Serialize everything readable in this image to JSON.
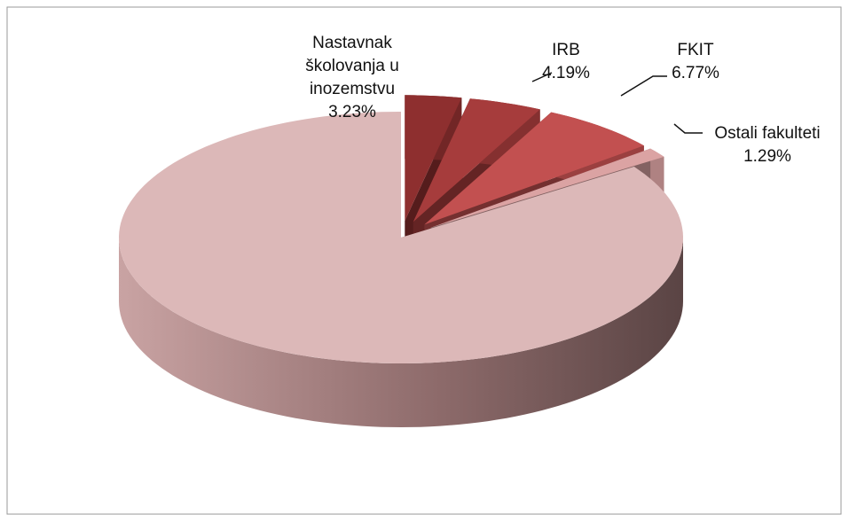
{
  "chart_data": {
    "type": "pie3d",
    "categories": [
      "Nastavnak školovanja u inozemstvu",
      "IRB",
      "FKIT",
      "Ostali fakulteti",
      null
    ],
    "values": [
      3.23,
      4.19,
      6.77,
      1.29,
      84.52
    ],
    "value_labels": [
      "3.23%",
      "4.19%",
      "6.77%",
      "1.29%",
      null
    ],
    "colors": [
      "#8e2f2f",
      "#a63c3c",
      "#c25050",
      "#dba3a3",
      "#dcb8b8"
    ],
    "exploded": [
      true,
      true,
      true,
      true,
      false
    ]
  }
}
